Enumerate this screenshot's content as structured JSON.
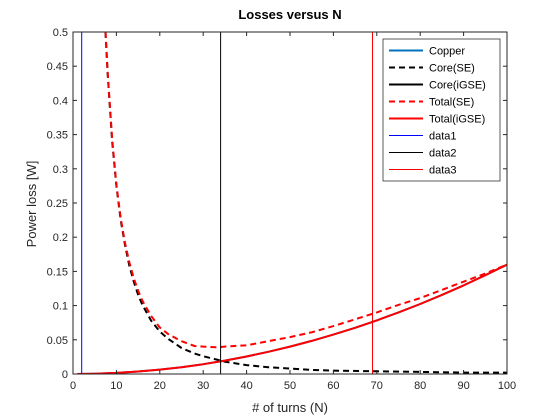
{
  "chart_data": {
    "type": "line",
    "title": "Losses versus N",
    "xlabel": "# of turns (N)",
    "ylabel": "Power loss [W]",
    "xlim": [
      0,
      100
    ],
    "ylim": [
      0,
      0.5
    ],
    "xticks": [
      0,
      10,
      20,
      30,
      40,
      50,
      60,
      70,
      80,
      90,
      100
    ],
    "yticks": [
      0,
      0.05,
      0.1,
      0.15,
      0.2,
      0.25,
      0.3,
      0.35,
      0.4,
      0.45,
      0.5
    ],
    "ytick_labels": [
      "0",
      "0.05",
      "0.1",
      "0.15",
      "0.2",
      "0.25",
      "0.3",
      "0.35",
      "0.4",
      "0.45",
      "0.5"
    ],
    "grid": false,
    "legend_location": "top-right",
    "series": [
      {
        "name": "Copper",
        "color": "#0072BD",
        "style": "solid",
        "width": 2,
        "x": [
          1,
          5,
          10,
          15,
          20,
          25,
          30,
          35,
          40,
          45,
          50,
          55,
          60,
          65,
          70,
          75,
          80,
          85,
          90,
          95,
          100
        ],
        "y": [
          0.0,
          0.0004,
          0.0016,
          0.0036,
          0.0064,
          0.01,
          0.0144,
          0.0196,
          0.0256,
          0.0324,
          0.04,
          0.0484,
          0.0576,
          0.0676,
          0.0784,
          0.09,
          0.1024,
          0.1156,
          0.1296,
          0.1444,
          0.16
        ]
      },
      {
        "name": "Core(SE)",
        "color": "#000000",
        "style": "dashed",
        "width": 2,
        "x": [
          7.5,
          8,
          9,
          10,
          11,
          12,
          13,
          14,
          15,
          16,
          18,
          20,
          22,
          25,
          28,
          30,
          35,
          40,
          45,
          50,
          55,
          60,
          70,
          80,
          90,
          100
        ],
        "y": [
          0.5,
          0.438,
          0.341,
          0.275,
          0.225,
          0.188,
          0.158,
          0.135,
          0.116,
          0.101,
          0.078,
          0.062,
          0.051,
          0.038,
          0.03,
          0.026,
          0.018,
          0.013,
          0.01,
          0.008,
          0.006,
          0.005,
          0.004,
          0.003,
          0.002,
          0.002
        ]
      },
      {
        "name": "Core(iGSE)",
        "color": "#000000",
        "style": "solid",
        "width": 2,
        "x": [],
        "y": []
      },
      {
        "name": "Total(SE)",
        "color": "#FF0000",
        "style": "dashed",
        "width": 2,
        "x": [
          7.5,
          8,
          9,
          10,
          11,
          12,
          13,
          14,
          15,
          16,
          18,
          20,
          22,
          25,
          28,
          30,
          33,
          35,
          40,
          45,
          50,
          55,
          60,
          65,
          70,
          75,
          80,
          85,
          90,
          95,
          100
        ],
        "y": [
          0.5,
          0.44,
          0.345,
          0.277,
          0.228,
          0.191,
          0.163,
          0.14,
          0.122,
          0.107,
          0.085,
          0.068,
          0.058,
          0.048,
          0.041,
          0.04,
          0.039,
          0.04,
          0.042,
          0.048,
          0.054,
          0.061,
          0.07,
          0.08,
          0.09,
          0.101,
          0.111,
          0.123,
          0.135,
          0.147,
          0.16
        ]
      },
      {
        "name": "Total(iGSE)",
        "color": "#FF0000",
        "style": "solid",
        "width": 2,
        "x": [
          1,
          5,
          10,
          15,
          20,
          25,
          30,
          35,
          40,
          45,
          50,
          55,
          60,
          65,
          70,
          75,
          80,
          85,
          90,
          95,
          100
        ],
        "y": [
          0.0,
          0.0004,
          0.0016,
          0.0036,
          0.0064,
          0.01,
          0.0144,
          0.0196,
          0.0256,
          0.0324,
          0.04,
          0.0484,
          0.0576,
          0.0676,
          0.0784,
          0.09,
          0.1024,
          0.1156,
          0.1296,
          0.1444,
          0.16
        ]
      },
      {
        "name": "data1",
        "color": "#0000FF",
        "style": "solid",
        "width": 1,
        "x": [
          2,
          2
        ],
        "y": [
          0,
          0.5
        ]
      },
      {
        "name": "data2",
        "color": "#000000",
        "style": "solid",
        "width": 1,
        "x": [
          34,
          34
        ],
        "y": [
          0,
          0.5
        ]
      },
      {
        "name": "data3",
        "color": "#FF0000",
        "style": "solid",
        "width": 1,
        "x": [
          69,
          69
        ],
        "y": [
          0,
          0.5
        ]
      }
    ]
  }
}
